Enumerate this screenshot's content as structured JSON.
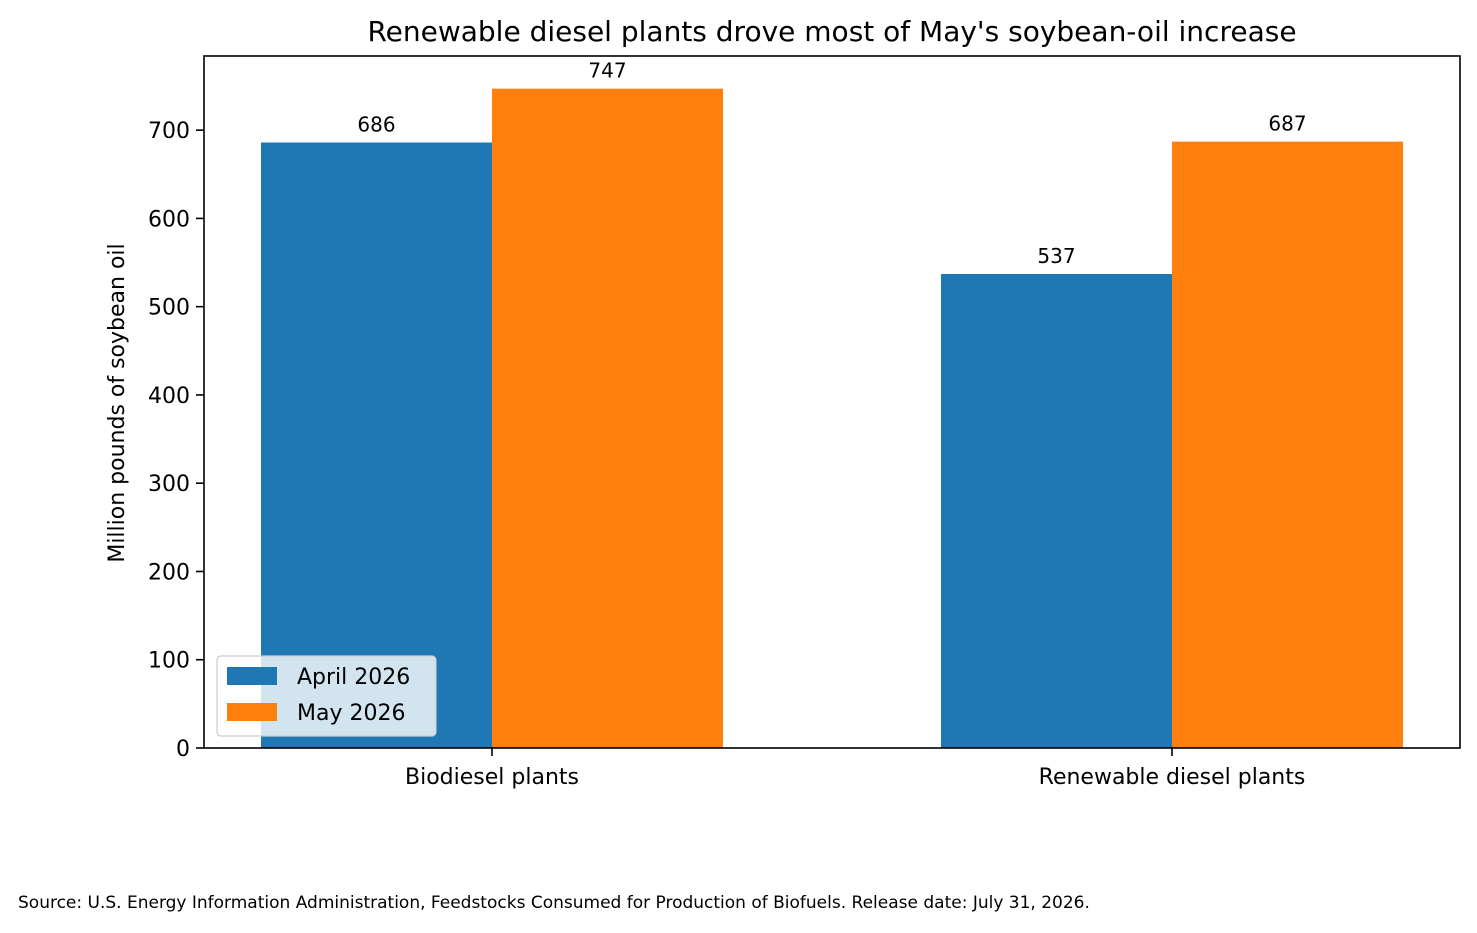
{
  "chart_data": {
    "type": "bar",
    "title": "Renewable diesel plants drove most of May's soybean-oil increase",
    "xlabel": "",
    "ylabel": "Million pounds of soybean oil",
    "categories": [
      "Biodiesel plants",
      "Renewable diesel plants"
    ],
    "series": [
      {
        "name": "April 2026",
        "values": [
          686,
          537
        ],
        "color": "#1f77b4"
      },
      {
        "name": "May 2026",
        "values": [
          747,
          687
        ],
        "color": "#ff7f0e"
      }
    ],
    "ylim": [
      0,
      784
    ],
    "yticks": [
      0,
      100,
      200,
      300,
      400,
      500,
      600,
      700
    ],
    "grid": false,
    "legend_position": "lower-left"
  },
  "footer": {
    "source": "Source: U.S. Energy Information Administration, Feedstocks Consumed for Production of Biofuels. Release date: July 31, 2026."
  }
}
